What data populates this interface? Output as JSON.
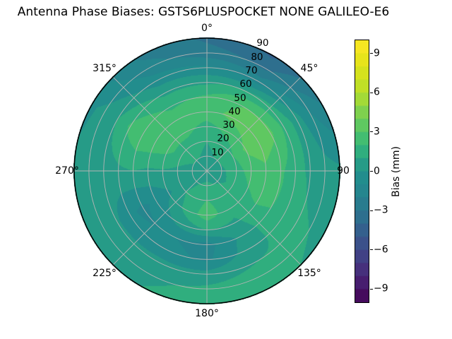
{
  "chart_data": {
    "type": "heatmap",
    "projection": "polar",
    "title": "Antenna Phase Biases: GSTS6PLUSPOCKET NONE GALILEO-E6",
    "theta_zero": "top",
    "theta_direction": "clockwise",
    "angular_ticks": [
      {
        "angle": 0,
        "label": "0°"
      },
      {
        "angle": 45,
        "label": "45°"
      },
      {
        "angle": 90,
        "label": "90"
      },
      {
        "angle": 135,
        "label": "135°"
      },
      {
        "angle": 180,
        "label": "180°"
      },
      {
        "angle": 225,
        "label": "225°"
      },
      {
        "angle": 270,
        "label": "270°"
      },
      {
        "angle": 315,
        "label": "315°"
      }
    ],
    "radial_ticks": [
      10,
      20,
      30,
      40,
      50,
      60,
      70,
      80,
      90
    ],
    "radial_range": [
      0,
      90
    ],
    "radial_label_angle_deg": 22.5,
    "gridline_color": "#b4b4b4",
    "outline_color": "#000000",
    "background_color": "#ffffff",
    "colorbar": {
      "label": "Bias (mm)",
      "tick_values": [
        9,
        6,
        3,
        0,
        -3,
        -6,
        -9
      ],
      "tick_labels": [
        "9",
        "6",
        "3",
        "0",
        "−3",
        "−6",
        "−9"
      ],
      "vmin": -10,
      "vmax": 10,
      "n_bands": 20,
      "colormap": "viridis"
    },
    "colormap_anchors": [
      "#440154",
      "#482878",
      "#3e4989",
      "#31688e",
      "#26828e",
      "#21918c",
      "#35b779",
      "#6dcd59",
      "#b5de2b",
      "#dfe318",
      "#fde725"
    ],
    "grid": {
      "azimuths_deg": [
        0,
        30,
        60,
        90,
        120,
        150,
        180,
        210,
        240,
        270,
        300,
        330
      ],
      "radii": [
        0,
        10,
        20,
        30,
        40,
        50,
        60,
        70,
        80,
        90
      ],
      "bias_mm": [
        [
          0.5,
          0.8,
          1.0,
          1.6,
          2.6,
          2.2,
          0.8,
          -0.8,
          -2.6,
          -3.2
        ],
        [
          0.5,
          1.0,
          1.4,
          2.4,
          3.4,
          3.0,
          1.2,
          -1.5,
          -3.2,
          -4.2
        ],
        [
          0.5,
          1.0,
          2.0,
          3.2,
          3.6,
          3.2,
          1.8,
          0.5,
          -1.0,
          -2.0
        ],
        [
          0.5,
          0.8,
          1.5,
          2.5,
          2.8,
          2.2,
          1.4,
          0.8,
          0.4,
          0.2
        ],
        [
          0.5,
          0.8,
          1.2,
          1.8,
          2.2,
          2.0,
          1.6,
          1.2,
          1.0,
          0.6
        ],
        [
          0.5,
          1.0,
          1.6,
          1.4,
          0.8,
          0.4,
          0.6,
          1.0,
          1.6,
          1.4
        ],
        [
          0.5,
          1.2,
          2.0,
          2.6,
          1.0,
          -1.4,
          -1.2,
          0.4,
          1.2,
          1.5
        ],
        [
          0.5,
          1.0,
          1.4,
          1.2,
          0.2,
          -0.9,
          -0.6,
          0.3,
          0.8,
          1.0
        ],
        [
          0.5,
          0.6,
          0.6,
          -0.2,
          -0.8,
          -1.2,
          -0.8,
          0.2,
          0.5,
          0.5
        ],
        [
          0.5,
          0.6,
          0.8,
          0.9,
          0.8,
          1.0,
          0.8,
          0.5,
          0.3,
          0.2
        ],
        [
          0.5,
          1.0,
          1.5,
          2.4,
          2.8,
          2.9,
          2.2,
          1.0,
          0.3,
          -0.2
        ],
        [
          0.5,
          1.0,
          1.4,
          2.4,
          2.6,
          1.8,
          0.8,
          -0.5,
          -1.6,
          -2.2
        ]
      ]
    }
  }
}
